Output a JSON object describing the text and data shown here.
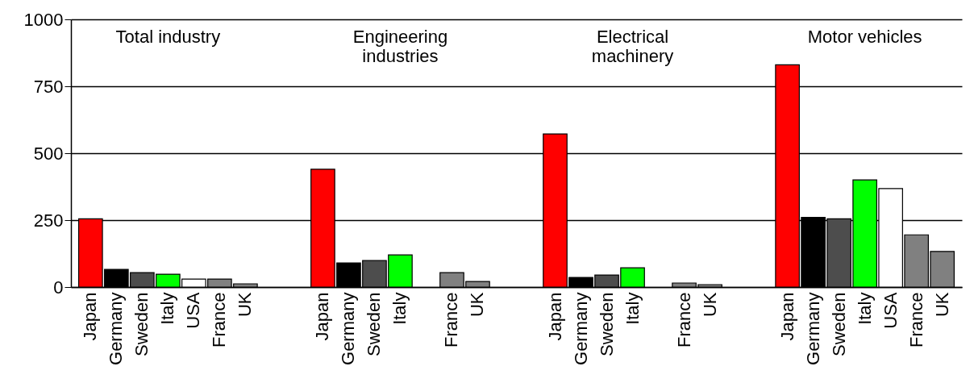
{
  "chart_data": {
    "type": "bar",
    "categories": [
      "Japan",
      "Germany",
      "Sweden",
      "Italy",
      "USA",
      "France",
      "UK",
      null,
      null,
      "Japan",
      "Germany",
      "Sweden",
      "Italy",
      null,
      "France",
      "UK",
      null,
      null,
      "Japan",
      "Germany",
      "Sweden",
      "Italy",
      null,
      "France",
      "UK",
      null,
      null,
      "Japan",
      "Germany",
      "Sweden",
      "Italy",
      "USA",
      "France",
      "UK"
    ],
    "values": [
      255,
      66,
      54,
      48,
      30,
      30,
      12,
      null,
      null,
      440,
      90,
      99,
      120,
      null,
      54,
      21,
      null,
      null,
      572,
      36,
      45,
      72,
      null,
      15,
      9,
      null,
      null,
      830,
      260,
      255,
      400,
      368,
      195,
      133
    ],
    "colors": [
      "#ff0000",
      "#000000",
      "#4d4d4d",
      "#00ff00",
      "#ffffff",
      "#808080",
      "#808080",
      null,
      null,
      "#ff0000",
      "#000000",
      "#4d4d4d",
      "#00ff00",
      null,
      "#808080",
      "#808080",
      null,
      null,
      "#ff0000",
      "#000000",
      "#4d4d4d",
      "#00ff00",
      null,
      "#808080",
      "#808080",
      null,
      null,
      "#ff0000",
      "#000000",
      "#4d4d4d",
      "#00ff00",
      "#ffffff",
      "#808080",
      "#808080"
    ],
    "annotations": [
      "Total industry",
      "Engineering\nindustries",
      "Electrical\nmachinery",
      "Motor vehicles"
    ],
    "ylim": [
      0,
      1000
    ],
    "yticks": [
      0,
      250,
      500,
      750,
      1000
    ],
    "grid": "y"
  }
}
